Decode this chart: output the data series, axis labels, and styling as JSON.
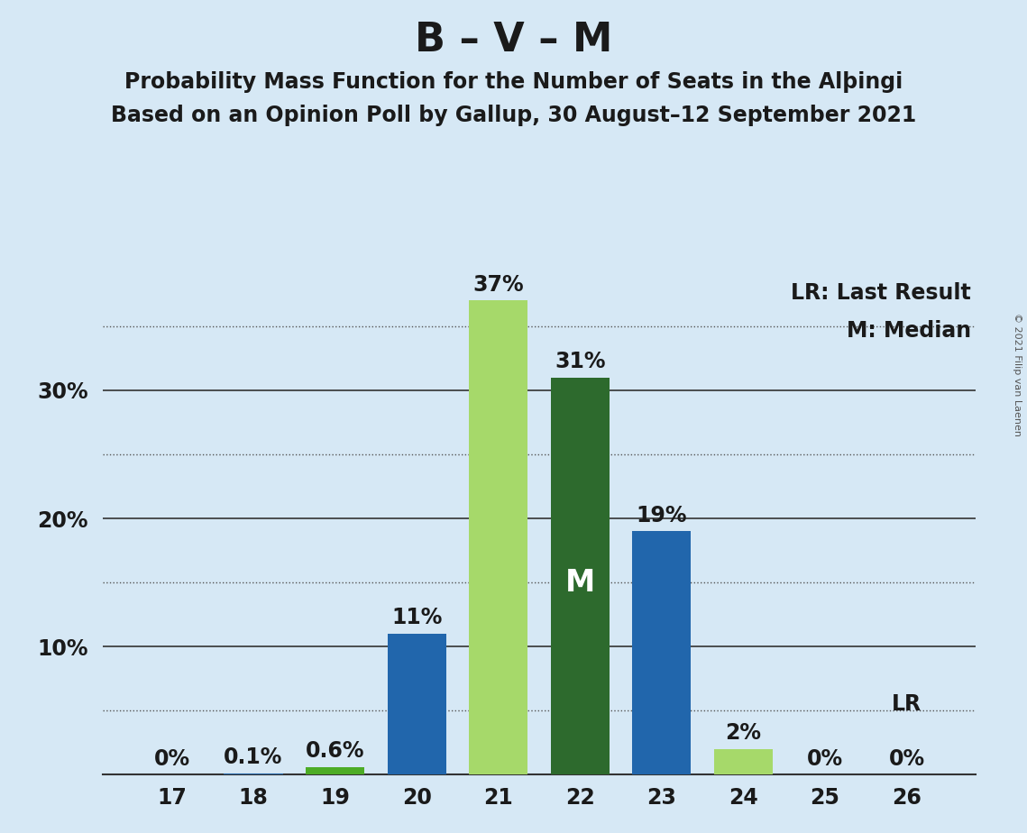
{
  "title": "B – V – M",
  "subtitle1": "Probability Mass Function for the Number of Seats in the Alþingi",
  "subtitle2": "Based on an Opinion Poll by Gallup, 30 August–12 September 2021",
  "copyright": "© 2021 Filip van Laenen",
  "categories": [
    17,
    18,
    19,
    20,
    21,
    22,
    23,
    24,
    25,
    26
  ],
  "values": [
    0.0,
    0.1,
    0.6,
    11.0,
    37.0,
    31.0,
    19.0,
    2.0,
    0.0,
    0.0
  ],
  "bar_colors": [
    "#2166ac",
    "#2166ac",
    "#4dac26",
    "#2166ac",
    "#a6d96a",
    "#2d6a2d",
    "#2166ac",
    "#a6d96a",
    "#2166ac",
    "#2166ac"
  ],
  "median_bar_idx": 5,
  "median_label": "M",
  "lr_bar_idx": 9,
  "lr_label": "LR",
  "background_color": "#d6e8f5",
  "title_fontsize": 32,
  "subtitle_fontsize": 17,
  "solid_gridlines": [
    10,
    20,
    30
  ],
  "dotted_gridlines": [
    5,
    15,
    25,
    35
  ],
  "ylim": [
    0,
    39
  ],
  "legend_text1": "LR: Last Result",
  "legend_text2": "M: Median",
  "bar_label_fontsize": 17,
  "axis_tick_fontsize": 17,
  "median_inner_fontsize": 24
}
